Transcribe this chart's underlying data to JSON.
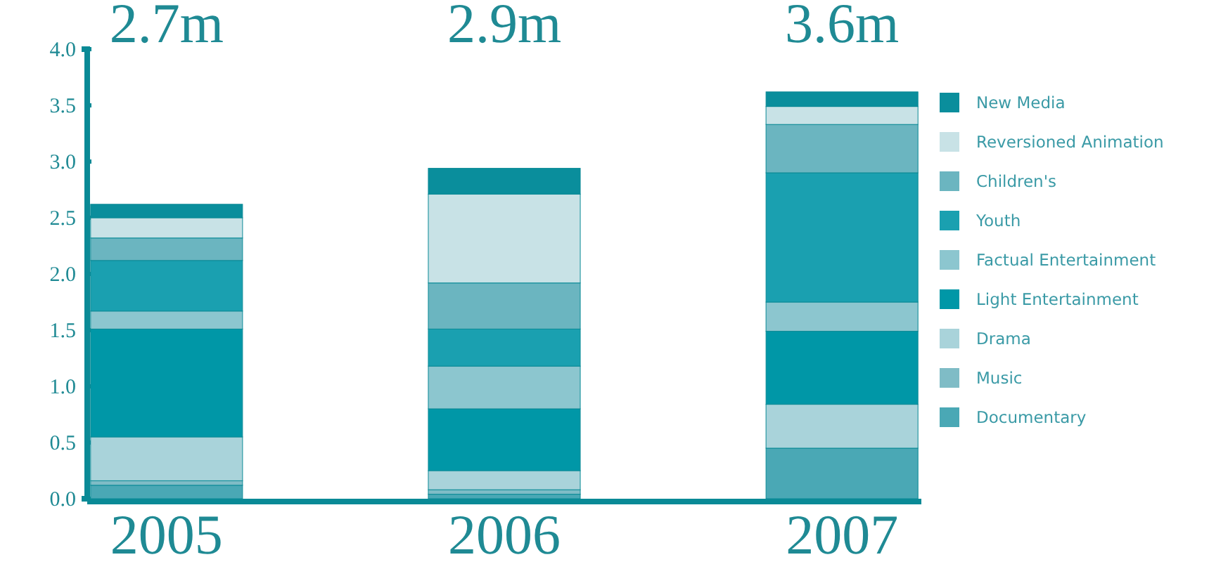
{
  "chart_data": {
    "type": "bar",
    "stacked": true,
    "categories": [
      "2005",
      "2006",
      "2007"
    ],
    "ylim": [
      0,
      4
    ],
    "yticks": [
      {
        "value": 0,
        "label": "0.0"
      },
      {
        "value": 0.5,
        "label": "0.5"
      },
      {
        "value": 1,
        "label": "1.0"
      },
      {
        "value": 1.5,
        "label": "1.5"
      },
      {
        "value": 2,
        "label": "2.0"
      },
      {
        "value": 2.5,
        "label": "2.5"
      },
      {
        "value": 3,
        "label": "3.0"
      },
      {
        "value": 3.5,
        "label": "3.5"
      },
      {
        "value": 4,
        "label": "4.0"
      }
    ],
    "grid": false,
    "legend": "right",
    "totals": [
      "2.7m",
      "2.9m",
      "3.6m"
    ],
    "series": [
      {
        "name": "Documentary",
        "color": "#4aa8b5",
        "values": [
          0.12,
          0.04,
          0.45
        ]
      },
      {
        "name": "Music",
        "color": "#7fbcc6",
        "values": [
          0.04,
          0.04,
          0
        ]
      },
      {
        "name": "Drama",
        "color": "#a9d3da",
        "values": [
          0.39,
          0.17,
          0.39
        ]
      },
      {
        "name": "Light Entertainment",
        "color": "#0097a7",
        "values": [
          0.96,
          0.55,
          0.65
        ]
      },
      {
        "name": "Factual Entertainment",
        "color": "#8cc6cf",
        "values": [
          0.16,
          0.38,
          0.26
        ]
      },
      {
        "name": "Youth",
        "color": "#1aa0b0",
        "values": [
          0.45,
          0.33,
          1.15
        ]
      },
      {
        "name": "Children's",
        "color": "#6bb5c0",
        "values": [
          0.2,
          0.41,
          0.43
        ]
      },
      {
        "name": "Reversioned Animation",
        "color": "#c8e2e6",
        "values": [
          0.18,
          0.79,
          0.16
        ]
      },
      {
        "name": "New Media",
        "color": "#0a8e9c",
        "values": [
          0.12,
          0.23,
          0.13
        ]
      }
    ]
  }
}
